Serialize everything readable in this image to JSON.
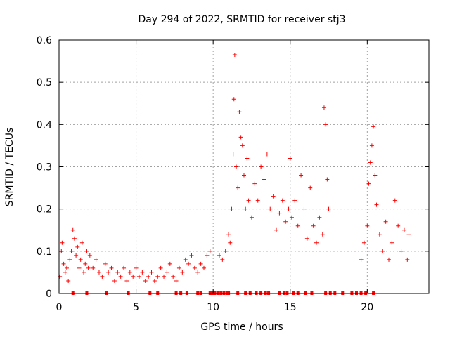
{
  "chart_data": {
    "type": "scatter",
    "title": "Day 294 of 2022, SRMTID for receiver stj3",
    "xlabel": "GPS time / hours",
    "ylabel": "SRMTID / TECUs",
    "xlim": [
      0,
      24
    ],
    "ylim": [
      0,
      0.6
    ],
    "x_ticks": [
      0,
      5,
      10,
      15,
      20
    ],
    "y_ticks": [
      0,
      0.1,
      0.2,
      0.3,
      0.4,
      0.5,
      0.6
    ],
    "x_tick_labels": [
      "0",
      "5",
      "10",
      "15",
      "20"
    ],
    "y_tick_labels": [
      "0",
      "0.1",
      "0.2",
      "0.3",
      "0.4",
      "0.5",
      "0.6"
    ],
    "grid": true,
    "marker": "+",
    "series_color": "#ff0000",
    "series": [
      {
        "name": "SRMTID",
        "description": "approximate envelope of the dense point cloud",
        "points": [
          [
            0.05,
            0.04
          ],
          [
            0.15,
            0.1
          ],
          [
            0.2,
            0.12
          ],
          [
            0.3,
            0.07
          ],
          [
            0.4,
            0.05
          ],
          [
            0.5,
            0.06
          ],
          [
            0.6,
            0.03
          ],
          [
            0.7,
            0.08
          ],
          [
            0.8,
            0.1
          ],
          [
            0.9,
            0.15
          ],
          [
            1.0,
            0.13
          ],
          [
            1.1,
            0.09
          ],
          [
            1.2,
            0.11
          ],
          [
            1.3,
            0.06
          ],
          [
            1.4,
            0.08
          ],
          [
            1.5,
            0.12
          ],
          [
            1.6,
            0.05
          ],
          [
            1.7,
            0.07
          ],
          [
            1.8,
            0.1
          ],
          [
            1.9,
            0.06
          ],
          [
            2.0,
            0.09
          ],
          [
            2.2,
            0.06
          ],
          [
            2.4,
            0.08
          ],
          [
            2.6,
            0.05
          ],
          [
            2.8,
            0.04
          ],
          [
            3.0,
            0.07
          ],
          [
            3.2,
            0.05
          ],
          [
            3.4,
            0.06
          ],
          [
            3.6,
            0.03
          ],
          [
            3.8,
            0.05
          ],
          [
            4.0,
            0.04
          ],
          [
            4.2,
            0.06
          ],
          [
            4.4,
            0.03
          ],
          [
            4.6,
            0.05
          ],
          [
            4.8,
            0.04
          ],
          [
            5.0,
            0.06
          ],
          [
            5.2,
            0.04
          ],
          [
            5.4,
            0.05
          ],
          [
            5.6,
            0.03
          ],
          [
            5.8,
            0.04
          ],
          [
            6.0,
            0.05
          ],
          [
            6.2,
            0.03
          ],
          [
            6.4,
            0.04
          ],
          [
            6.6,
            0.06
          ],
          [
            6.8,
            0.04
          ],
          [
            7.0,
            0.05
          ],
          [
            7.2,
            0.07
          ],
          [
            7.4,
            0.04
          ],
          [
            7.6,
            0.03
          ],
          [
            7.8,
            0.06
          ],
          [
            8.0,
            0.05
          ],
          [
            8.2,
            0.08
          ],
          [
            8.4,
            0.07
          ],
          [
            8.6,
            0.09
          ],
          [
            8.8,
            0.06
          ],
          [
            9.0,
            0.05
          ],
          [
            9.2,
            0.07
          ],
          [
            9.4,
            0.06
          ],
          [
            9.6,
            0.09
          ],
          [
            9.8,
            0.1
          ],
          [
            10.4,
            0.09
          ],
          [
            10.6,
            0.08
          ],
          [
            10.8,
            0.1
          ],
          [
            11.0,
            0.14
          ],
          [
            11.1,
            0.12
          ],
          [
            11.2,
            0.2
          ],
          [
            11.3,
            0.33
          ],
          [
            11.35,
            0.46
          ],
          [
            11.4,
            0.565
          ],
          [
            11.5,
            0.3
          ],
          [
            11.6,
            0.25
          ],
          [
            11.7,
            0.43
          ],
          [
            11.8,
            0.37
          ],
          [
            11.9,
            0.35
          ],
          [
            12.0,
            0.28
          ],
          [
            12.1,
            0.2
          ],
          [
            12.2,
            0.32
          ],
          [
            12.3,
            0.22
          ],
          [
            12.5,
            0.18
          ],
          [
            12.7,
            0.26
          ],
          [
            12.9,
            0.22
          ],
          [
            13.1,
            0.3
          ],
          [
            13.3,
            0.27
          ],
          [
            13.5,
            0.33
          ],
          [
            13.7,
            0.2
          ],
          [
            13.9,
            0.23
          ],
          [
            14.1,
            0.15
          ],
          [
            14.3,
            0.19
          ],
          [
            14.5,
            0.22
          ],
          [
            14.7,
            0.17
          ],
          [
            14.9,
            0.2
          ],
          [
            15.0,
            0.32
          ],
          [
            15.1,
            0.18
          ],
          [
            15.3,
            0.22
          ],
          [
            15.5,
            0.16
          ],
          [
            15.7,
            0.28
          ],
          [
            15.9,
            0.2
          ],
          [
            16.1,
            0.13
          ],
          [
            16.3,
            0.25
          ],
          [
            16.5,
            0.16
          ],
          [
            16.7,
            0.12
          ],
          [
            16.9,
            0.18
          ],
          [
            17.1,
            0.14
          ],
          [
            17.2,
            0.44
          ],
          [
            17.3,
            0.4
          ],
          [
            17.4,
            0.27
          ],
          [
            17.5,
            0.2
          ],
          [
            19.6,
            0.08
          ],
          [
            19.8,
            0.12
          ],
          [
            20.0,
            0.16
          ],
          [
            20.1,
            0.26
          ],
          [
            20.2,
            0.31
          ],
          [
            20.3,
            0.35
          ],
          [
            20.4,
            0.395
          ],
          [
            20.5,
            0.28
          ],
          [
            20.6,
            0.21
          ],
          [
            20.8,
            0.14
          ],
          [
            21.0,
            0.1
          ],
          [
            21.2,
            0.17
          ],
          [
            21.4,
            0.08
          ],
          [
            21.6,
            0.12
          ],
          [
            21.8,
            0.22
          ],
          [
            22.0,
            0.16
          ],
          [
            22.2,
            0.1
          ],
          [
            22.4,
            0.15
          ],
          [
            22.6,
            0.08
          ],
          [
            22.7,
            0.14
          ]
        ]
      }
    ],
    "zero_markers_x": [
      0.9,
      1.8,
      3.1,
      4.5,
      5.9,
      6.4,
      7.6,
      7.9,
      8.3,
      9.0,
      9.2,
      9.8,
      9.9,
      10.0,
      10.1,
      10.3,
      10.5,
      10.7,
      10.9,
      11.0,
      11.6,
      12.1,
      12.4,
      12.8,
      13.1,
      13.4,
      13.6,
      14.3,
      14.6,
      14.8,
      15.2,
      15.5,
      16.0,
      16.4,
      17.3,
      17.6,
      17.9,
      18.4,
      19.0,
      19.3,
      19.6,
      19.9,
      20.4
    ]
  }
}
